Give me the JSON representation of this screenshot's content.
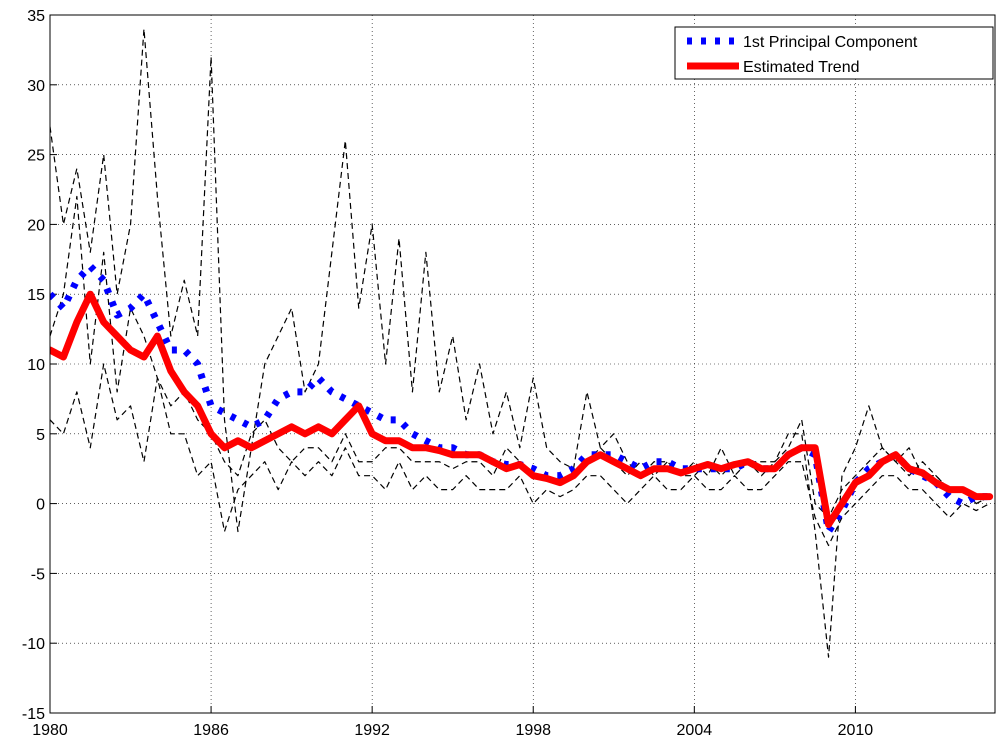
{
  "chart_data": {
    "type": "line",
    "xlim": [
      1980,
      2015.2
    ],
    "xticks": [
      1980,
      1986,
      1992,
      1998,
      2004,
      2010
    ],
    "ylim": [
      -15,
      35
    ],
    "yticks": [
      -15,
      -10,
      -5,
      0,
      5,
      10,
      15,
      20,
      25,
      30,
      35
    ],
    "grid": true,
    "legend": "upper right",
    "x": [
      1980,
      1980.5,
      1981,
      1981.5,
      1982,
      1982.5,
      1983,
      1983.5,
      1984,
      1984.5,
      1985,
      1985.5,
      1986,
      1986.5,
      1987,
      1987.5,
      1988,
      1988.5,
      1989,
      1989.5,
      1990,
      1990.5,
      1991,
      1991.5,
      1992,
      1992.5,
      1993,
      1993.5,
      1994,
      1994.5,
      1995,
      1995.5,
      1996,
      1996.5,
      1997,
      1997.5,
      1998,
      1998.5,
      1999,
      1999.5,
      2000,
      2000.5,
      2001,
      2001.5,
      2002,
      2002.5,
      2003,
      2003.5,
      2004,
      2004.5,
      2005,
      2005.5,
      2006,
      2006.5,
      2007,
      2007.5,
      2008,
      2008.5,
      2009,
      2009.5,
      2010,
      2010.5,
      2011,
      2011.5,
      2012,
      2012.5,
      2013,
      2013.5,
      2014,
      2014.5,
      2015
    ],
    "series": [
      {
        "color": "#000000",
        "style": "dashed",
        "values": [
          27,
          20,
          24,
          18,
          25,
          15,
          20,
          34,
          22,
          12,
          16,
          12,
          32,
          6,
          -2,
          4,
          10,
          12,
          14,
          8,
          10,
          18,
          26,
          14,
          20,
          10,
          19,
          8,
          18,
          8,
          12,
          6,
          10,
          5,
          8,
          4,
          9,
          4,
          3,
          2.5,
          8,
          4,
          5,
          3,
          2,
          3,
          3,
          2,
          3,
          2,
          4,
          2,
          3,
          3,
          3,
          5,
          5,
          -2,
          -11,
          2,
          4,
          7,
          4,
          3,
          4,
          2,
          2,
          1,
          1,
          0,
          0.5
        ]
      },
      {
        "color": "#000000",
        "style": "dashed",
        "values": [
          6,
          5,
          8,
          4,
          10,
          6,
          7,
          3,
          9,
          5,
          5,
          2,
          3,
          -2,
          1,
          2,
          3,
          1,
          3,
          2,
          3,
          2,
          4,
          2,
          2,
          1,
          3,
          1,
          2,
          1,
          1,
          2,
          1,
          1,
          1,
          2,
          0,
          1,
          0.5,
          1,
          2,
          2,
          1,
          0,
          1,
          2,
          1,
          1,
          2,
          1,
          1,
          2,
          1,
          1,
          2,
          3,
          3,
          -1,
          -3,
          -1,
          0,
          1,
          2,
          2,
          1,
          1,
          0,
          -1,
          0,
          -0.5,
          0
        ]
      },
      {
        "color": "#000000",
        "style": "dashed",
        "values": [
          12,
          15,
          22,
          10,
          18,
          8,
          14,
          12,
          9,
          7,
          8,
          6,
          5,
          3,
          2,
          5,
          6,
          4,
          3,
          4,
          4,
          3,
          5,
          3,
          3,
          4,
          4,
          3,
          3,
          3,
          2.5,
          3,
          3,
          2,
          4,
          3,
          2,
          2,
          1.5,
          2,
          3,
          4,
          3,
          2,
          3,
          2,
          3,
          2,
          2,
          3,
          2,
          3,
          3,
          2,
          3,
          4,
          6,
          0,
          -1,
          1,
          2,
          3,
          4,
          3,
          2,
          3,
          2,
          1,
          1,
          0,
          0.5
        ]
      },
      {
        "name": "1st Principal Component",
        "color": "#0000ff",
        "style": "dotted",
        "values": [
          15,
          14,
          16,
          17,
          16,
          13.5,
          14,
          15,
          13,
          11,
          11,
          10,
          7,
          6.5,
          6,
          5.5,
          6,
          7.5,
          8,
          8,
          9,
          8,
          7.5,
          7,
          6.5,
          6,
          6,
          5,
          4.5,
          4,
          4,
          3.5,
          3.5,
          3,
          2.8,
          2.8,
          2.5,
          2,
          2,
          2.5,
          3.5,
          3.5,
          3.5,
          3,
          2.5,
          3,
          3,
          2.5,
          2.5,
          2.5,
          2.5,
          2.5,
          3,
          2.5,
          2.5,
          3.5,
          4,
          3.5,
          -2,
          -0.5,
          1.5,
          2.5,
          3,
          3.5,
          2.5,
          2,
          1.5,
          0.5,
          0,
          0.5,
          0.5
        ]
      },
      {
        "name": "Estimated Trend",
        "color": "#ff0000",
        "style": "solid",
        "values": [
          11,
          10.5,
          13,
          15,
          13,
          12,
          11,
          10.5,
          12,
          9.5,
          8,
          7,
          5,
          4,
          4.5,
          4,
          4.5,
          5,
          5.5,
          5,
          5.5,
          5,
          6,
          7,
          5,
          4.5,
          4.5,
          4,
          4,
          3.8,
          3.5,
          3.5,
          3.5,
          3,
          2.5,
          2.8,
          2,
          1.8,
          1.5,
          2,
          3,
          3.5,
          3,
          2.5,
          2,
          2.5,
          2.5,
          2.2,
          2.5,
          2.8,
          2.5,
          2.8,
          3,
          2.5,
          2.5,
          3.5,
          4,
          4,
          -1.5,
          0,
          1.5,
          2,
          3,
          3.5,
          2.5,
          2.2,
          1.5,
          1,
          1,
          0.5,
          0.5
        ]
      }
    ]
  }
}
